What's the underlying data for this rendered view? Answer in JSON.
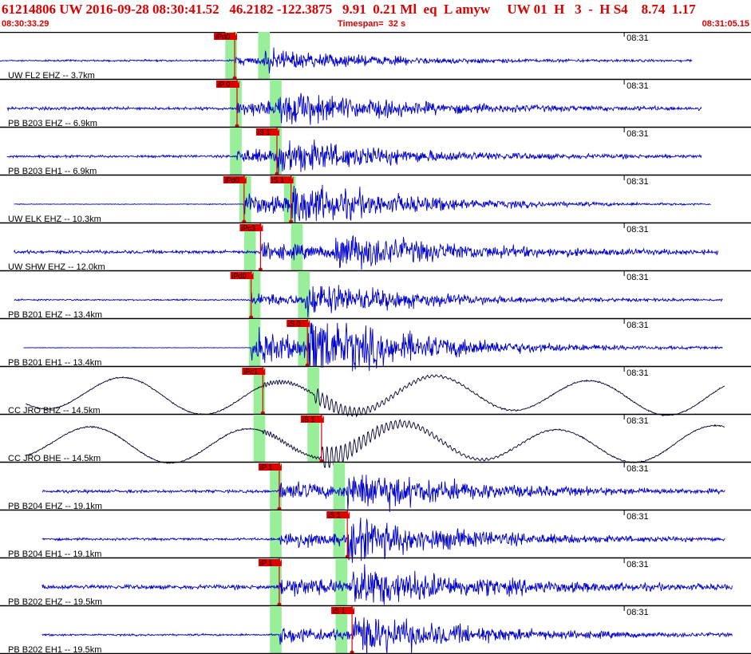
{
  "header": {
    "line1": "61214806 UW 2016-09-28 08:30:41.52   46.2182 -122.3875   9.91  0.21 Ml  eq  L amyw     UW 01  H   3  -  H S4    8.74  1.17",
    "start_time": "08:30:33.29",
    "timespan_label": "Timespan=  32 s",
    "end_time": "08:31:05.15"
  },
  "chart_data": {
    "type": "line",
    "xlim": [
      0,
      32
    ],
    "time_tick_label": "08:31",
    "time_tick_seconds": 26.7,
    "colors": {
      "trace": "#0000cc",
      "trace_broadband": "#000033",
      "pick": "#dd0000",
      "window": "#99ee99",
      "divider": "#000000"
    },
    "traces": [
      {
        "label": "UW FL2 EHZ -- 3.7km",
        "start": 0.0,
        "end": 29.5,
        "amp": 0.7,
        "style": "sp",
        "window_p": [
          9.6,
          10.1
        ],
        "window_s": [
          11.0,
          11.5
        ],
        "picks": [
          {
            "text": "iPd0",
            "t": 10.0,
            "above": true
          }
        ],
        "arrival_p": 10.0,
        "arrival_s": 11.2,
        "env": 0.45
      },
      {
        "label": "PB B203 EHZ -- 6.9km",
        "start": 0.3,
        "end": 29.9,
        "amp": 1.2,
        "style": "sp",
        "window_p": [
          9.8,
          10.3
        ],
        "window_s": [
          11.5,
          12.0
        ],
        "picks": [
          {
            "text": "iP 0",
            "t": 10.1,
            "above": true
          }
        ],
        "arrival_p": 10.1,
        "arrival_s": 11.8,
        "env": 0.8
      },
      {
        "label": "PB B203 EH1 -- 6.9km",
        "start": 0.3,
        "end": 29.9,
        "amp": 1.0,
        "style": "sp",
        "window_p": [
          9.8,
          10.3
        ],
        "window_s": [
          11.5,
          12.0
        ],
        "picks": [
          {
            "text": "iS 1",
            "t": 11.8,
            "above": true
          }
        ],
        "arrival_p": 10.1,
        "arrival_s": 11.8,
        "env": 0.8
      },
      {
        "label": "UW ELK EHZ -- 10.3km",
        "start": 0.6,
        "end": 30.3,
        "amp": 0.3,
        "style": "sp",
        "window_p": [
          10.2,
          10.7
        ],
        "window_s": [
          12.1,
          12.6
        ],
        "picks": [
          {
            "text": "iPd0",
            "t": 10.4,
            "above": true
          },
          {
            "text": "iS 1",
            "t": 12.4,
            "above": true
          }
        ],
        "arrival_p": 10.4,
        "arrival_s": 12.4,
        "env": 0.6
      },
      {
        "label": "UW SHW EHZ -- 12.0km",
        "start": 0.6,
        "end": 30.6,
        "amp": 1.4,
        "style": "sp",
        "window_p": [
          10.4,
          10.9
        ],
        "window_s": [
          12.4,
          12.9
        ],
        "picks": [
          {
            "text": "iPc3",
            "t": 11.1,
            "above": true
          }
        ],
        "arrival_p": 11.1,
        "arrival_s": 14.2,
        "env": 0.9
      },
      {
        "label": "PB B201 EHZ -- 13.4km",
        "start": 0.6,
        "end": 30.8,
        "amp": 0.6,
        "style": "sp",
        "window_p": [
          10.6,
          11.1
        ],
        "window_s": [
          12.7,
          13.2
        ],
        "picks": [
          {
            "text": "iPd0",
            "t": 10.7,
            "above": true
          }
        ],
        "arrival_p": 10.7,
        "arrival_s": 13.0,
        "env": 0.8
      },
      {
        "label": "PB B201 EH1 -- 13.4km",
        "start": 1.0,
        "end": 30.8,
        "amp": 0.2,
        "style": "sp",
        "window_p": [
          10.6,
          11.1
        ],
        "window_s": [
          12.7,
          13.2
        ],
        "picks": [
          {
            "text": "iS 0",
            "t": 13.1,
            "above": true
          }
        ],
        "arrival_p": 10.7,
        "arrival_s": 13.1,
        "env": 0.9
      },
      {
        "label": "CC JRO BHZ -- 14.5km",
        "start": 1.1,
        "end": 30.9,
        "amp": 1.3,
        "style": "bb",
        "window_p": [
          10.8,
          11.3
        ],
        "window_s": [
          13.1,
          13.6
        ],
        "picks": [
          {
            "text": "iPc1",
            "t": 11.2,
            "above": true
          }
        ],
        "arrival_p": 11.2,
        "arrival_s": 13.4,
        "env": 0.5
      },
      {
        "label": "CC JRO BHE -- 14.5km",
        "start": 1.1,
        "end": 30.9,
        "amp": 1.3,
        "style": "bb",
        "window_p": [
          10.8,
          11.3
        ],
        "window_s": [
          13.1,
          13.6
        ],
        "picks": [
          {
            "text": "iS 1",
            "t": 13.7,
            "above": true
          }
        ],
        "arrival_p": 11.2,
        "arrival_s": 13.7,
        "env": 0.6
      },
      {
        "label": "PB B204 EHZ -- 19.1km",
        "start": 1.8,
        "end": 30.9,
        "amp": 1.2,
        "style": "sp",
        "window_p": [
          11.5,
          12.0
        ],
        "window_s": [
          14.2,
          14.7
        ],
        "picks": [
          {
            "text": "iP 1",
            "t": 11.9,
            "above": true
          }
        ],
        "arrival_p": 11.9,
        "arrival_s": 14.8,
        "env": 1.0
      },
      {
        "label": "PB B204 EH1 -- 19.1km",
        "start": 1.8,
        "end": 30.9,
        "amp": 1.0,
        "style": "sp",
        "window_p": [
          11.5,
          12.0
        ],
        "window_s": [
          14.2,
          14.7
        ],
        "picks": [
          {
            "text": "iS 1",
            "t": 14.8,
            "above": true
          }
        ],
        "arrival_p": 11.9,
        "arrival_s": 14.8,
        "env": 1.0
      },
      {
        "label": "PB B202 EHZ -- 19.5km",
        "start": 1.8,
        "end": 31.2,
        "amp": 1.8,
        "style": "sp",
        "window_p": [
          11.5,
          12.0
        ],
        "window_s": [
          14.3,
          14.8
        ],
        "picks": [
          {
            "text": "iP 1",
            "t": 11.9,
            "above": true
          }
        ],
        "arrival_p": 11.9,
        "arrival_s": 15.0,
        "env": 1.0
      },
      {
        "label": "PB B202 EH1 -- 19.5km",
        "start": 1.8,
        "end": 31.2,
        "amp": 0.8,
        "style": "sp",
        "window_p": [
          11.5,
          12.0
        ],
        "window_s": [
          14.3,
          14.8
        ],
        "picks": [
          {
            "text": "iS 1",
            "t": 15.0,
            "above": true
          }
        ],
        "arrival_p": 11.9,
        "arrival_s": 15.0,
        "env": 1.0
      }
    ]
  }
}
